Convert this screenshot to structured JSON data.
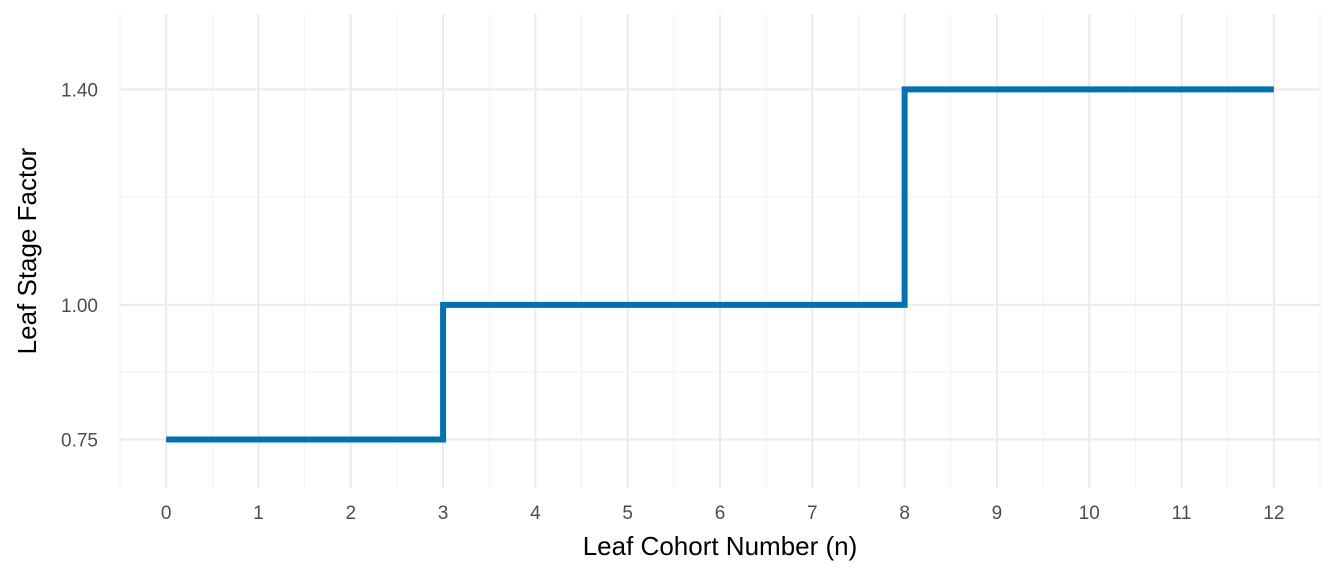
{
  "chart_data": {
    "type": "line",
    "step": true,
    "xlabel": "Leaf Cohort Number (n)",
    "ylabel": "Leaf Stage Factor",
    "xlim": [
      -0.5,
      12.5
    ],
    "ylim": [
      0.66,
      1.54
    ],
    "x_ticks": [
      0,
      1,
      2,
      3,
      4,
      5,
      6,
      7,
      8,
      9,
      10,
      11,
      12
    ],
    "x_tick_labels": [
      "0",
      "1",
      "2",
      "3",
      "4",
      "5",
      "6",
      "7",
      "8",
      "9",
      "10",
      "11",
      "12"
    ],
    "y_ticks": [
      0.75,
      1.0,
      1.4
    ],
    "y_tick_labels": [
      "0.75",
      "1.00",
      "1.40"
    ],
    "y_minor": [
      0.875,
      1.2
    ],
    "grid": true,
    "series": [
      {
        "color": "#0072B2",
        "points": [
          {
            "x": 0,
            "y": 0.75
          },
          {
            "x": 3,
            "y": 0.75
          },
          {
            "x": 3,
            "y": 1.0
          },
          {
            "x": 8,
            "y": 1.0
          },
          {
            "x": 8,
            "y": 1.4
          },
          {
            "x": 12,
            "y": 1.4
          }
        ]
      }
    ]
  }
}
